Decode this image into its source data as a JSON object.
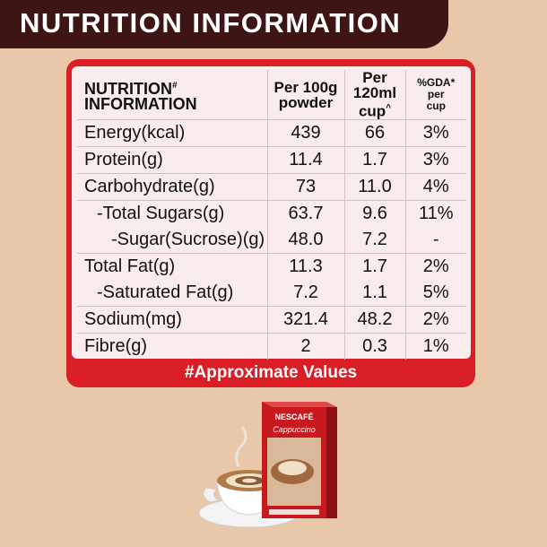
{
  "banner": {
    "title": "NUTRITION INFORMATION"
  },
  "table": {
    "headers": {
      "nutrient": "NUTRITION",
      "nutrient_mark": "#",
      "nutrient_line2": "INFORMATION",
      "per100g_l1": "Per 100g",
      "per100g_l2": "powder",
      "percup_l1": "Per",
      "percup_l2": "120ml",
      "percup_l3": "cup",
      "percup_mark": "^",
      "gda_l1": "%GDA*",
      "gda_l2": "per",
      "gda_l3": "cup"
    },
    "rows": [
      {
        "name": "Energy(kcal)",
        "per100g": "439",
        "percup": "66",
        "gda": "3%"
      },
      {
        "name": "Protein(g)",
        "per100g": "11.4",
        "percup": "1.7",
        "gda": "3%"
      },
      {
        "name": "Carbohydrate(g)",
        "per100g": "73",
        "percup": "11.0",
        "gda": "4%"
      },
      {
        "name": "-Total Sugars(g)",
        "per100g": "63.7",
        "percup": "9.6",
        "gda": "11%"
      },
      {
        "name": "-Sugar(Sucrose)(g)",
        "per100g": "48.0",
        "percup": "7.2",
        "gda": "-"
      },
      {
        "name": "Total Fat(g)",
        "per100g": "11.3",
        "percup": "1.7",
        "gda": "2%"
      },
      {
        "name": "-Saturated Fat(g)",
        "per100g": "7.2",
        "percup": "1.1",
        "gda": "5%"
      },
      {
        "name": "Sodium(mg)",
        "per100g": "321.4",
        "percup": "48.2",
        "gda": "2%"
      },
      {
        "name": "Fibre(g)",
        "per100g": "2",
        "percup": "0.3",
        "gda": "1%"
      }
    ]
  },
  "footer": {
    "note": "#Approximate Values"
  },
  "product": {
    "brand": "NESCAFÉ",
    "name": "Cappuccino"
  },
  "colors": {
    "banner": "#3f1414",
    "accent_red": "#d91e26",
    "background": "#e8c8a8",
    "panel": "#f9ecec"
  }
}
